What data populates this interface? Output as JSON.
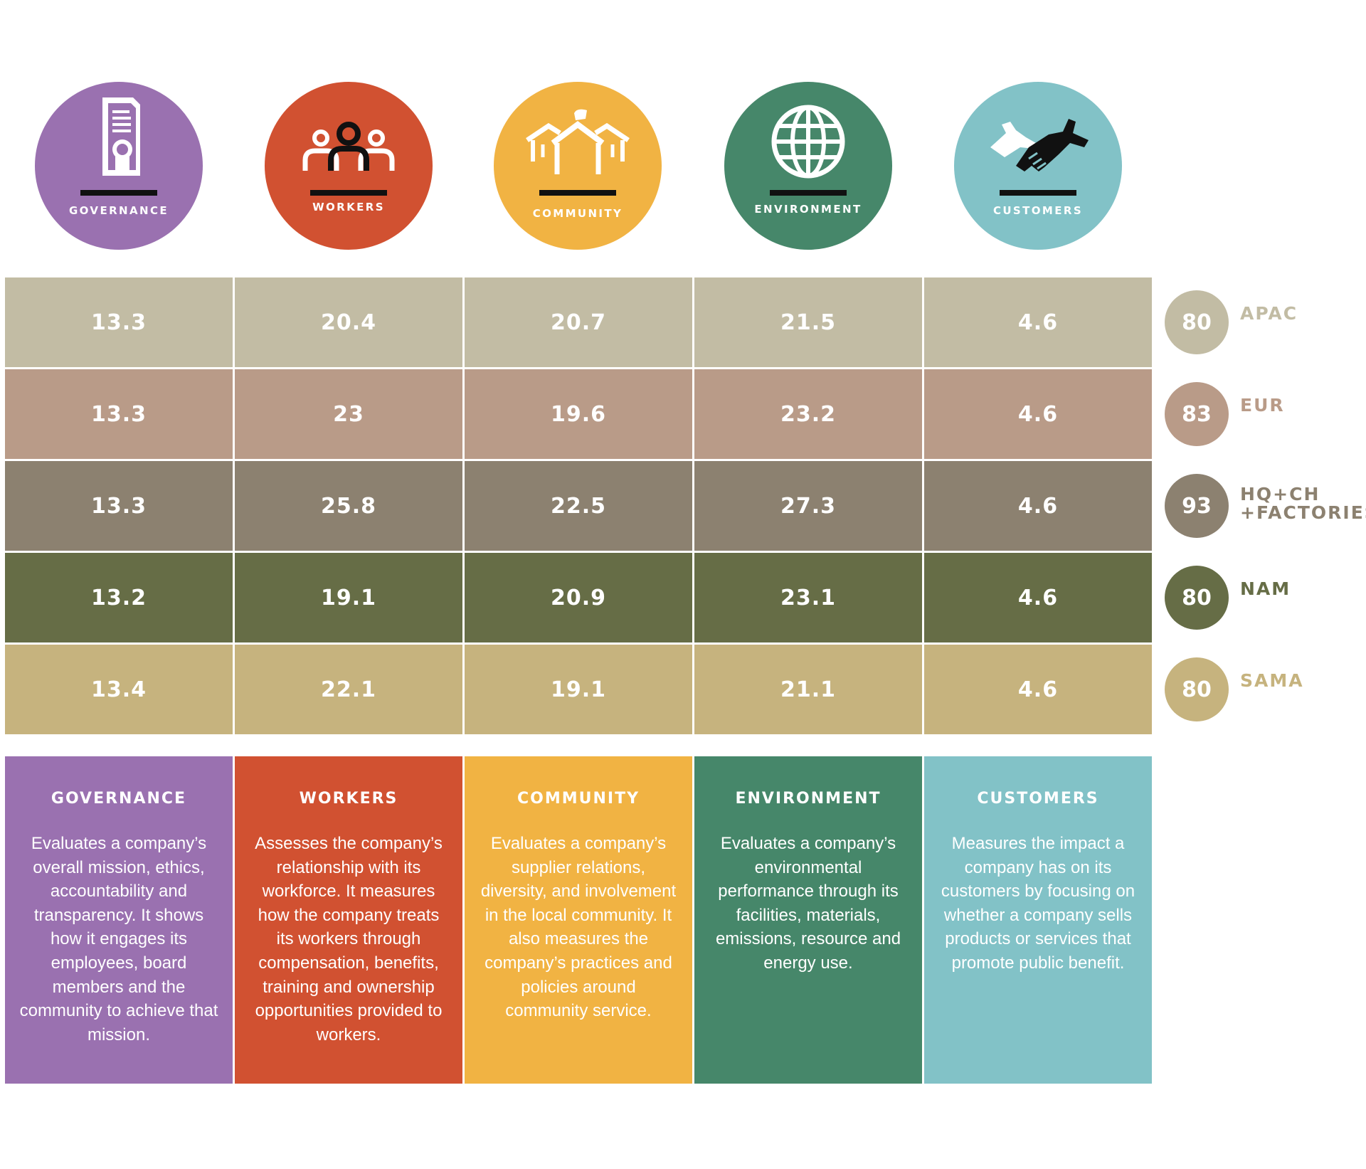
{
  "categories": [
    {
      "key": "governance",
      "label": "GOVERNANCE",
      "color": "#9a71b0",
      "icon": "certificate-icon"
    },
    {
      "key": "workers",
      "label": "WORKERS",
      "color": "#d15131",
      "icon": "workers-group-icon"
    },
    {
      "key": "community",
      "label": "COMMUNITY",
      "color": "#f1b343",
      "icon": "houses-icon"
    },
    {
      "key": "environment",
      "label": "ENVIRONMENT",
      "color": "#46876a",
      "icon": "globe-icon"
    },
    {
      "key": "customers",
      "label": "CUSTOMERS",
      "color": "#82c2c7",
      "icon": "handshake-icon"
    }
  ],
  "chart_data": {
    "type": "table",
    "columns": [
      "GOVERNANCE",
      "WORKERS",
      "COMMUNITY",
      "ENVIRONMENT",
      "CUSTOMERS"
    ],
    "rows": [
      {
        "region": "APAC",
        "total": "80",
        "values": [
          "13.3",
          "20.4",
          "20.7",
          "21.5",
          "4.6"
        ],
        "color": "#c2bca4",
        "label_color": "#c2bca4"
      },
      {
        "region": "EUR",
        "total": "83",
        "values": [
          "13.3",
          "23",
          "19.6",
          "23.2",
          "4.6"
        ],
        "color": "#b99b88",
        "label_color": "#b99b88"
      },
      {
        "region": "HQ+CH\n+FACTORIES",
        "total": "93",
        "values": [
          "13.3",
          "25.8",
          "22.5",
          "27.3",
          "4.6"
        ],
        "color": "#8c8170",
        "label_color": "#8c8170"
      },
      {
        "region": "NAM",
        "total": "80",
        "values": [
          "13.2",
          "19.1",
          "20.9",
          "23.1",
          "4.6"
        ],
        "color": "#666d46",
        "label_color": "#666d46"
      },
      {
        "region": "SAMA",
        "total": "80",
        "values": [
          "13.4",
          "22.1",
          "19.1",
          "21.1",
          "4.6"
        ],
        "color": "#c6b37e",
        "label_color": "#c6b37e"
      }
    ]
  },
  "descriptions": [
    {
      "title": "GOVERNANCE",
      "text": "Evaluates a company’s overall mission, ethics, accountability and transparency. It shows how it engages its employees, board members and the community to achieve that mission."
    },
    {
      "title": "WORKERS",
      "text": "Assesses the company’s relationship with its workforce. It measures how the company treats its workers through compensation, benefits, training and ownership opportunities provided to workers."
    },
    {
      "title": "COMMUNITY",
      "text": "Evaluates a company’s supplier relations, diversity, and involvement in the local community. It also measures the company’s practices and policies around community service."
    },
    {
      "title": "ENVIRONMENT",
      "text": "Evaluates a company’s environmental performance through its facilities, materials, emissions, resource and energy use."
    },
    {
      "title": "CUSTOMERS",
      "text": "Measures the impact a company has on its customers by focusing on whether a company sells products or services that promote public benefit."
    }
  ]
}
